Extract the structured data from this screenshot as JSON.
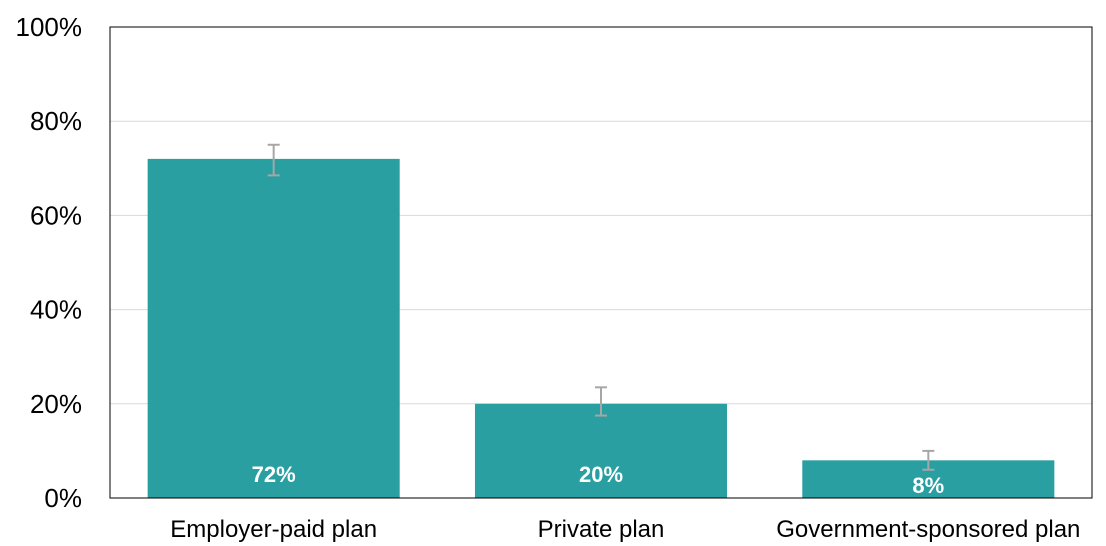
{
  "chart_data": {
    "type": "bar",
    "categories": [
      "Employer-paid plan",
      "Private plan",
      "Government-sponsored plan"
    ],
    "values": [
      72,
      20,
      8
    ],
    "data_labels": [
      "72%",
      "20%",
      "8%"
    ],
    "error_bars": [
      {
        "low": 68.5,
        "high": 75
      },
      {
        "low": 17.5,
        "high": 23.5
      },
      {
        "low": 6,
        "high": 10
      }
    ],
    "ylim": [
      0,
      100
    ],
    "yticks": [
      0,
      20,
      40,
      60,
      80,
      100
    ],
    "ytick_labels": [
      "0%",
      "20%",
      "40%",
      "60%",
      "80%",
      "100%"
    ],
    "grid": true,
    "title": "",
    "xlabel": "",
    "ylabel": "",
    "colors": {
      "bar": "#2A9FA2",
      "error_bar": "#A6A6A6",
      "grid": "#D9D9D9",
      "frame": "#000000",
      "data_label": "#FFFFFF"
    }
  }
}
